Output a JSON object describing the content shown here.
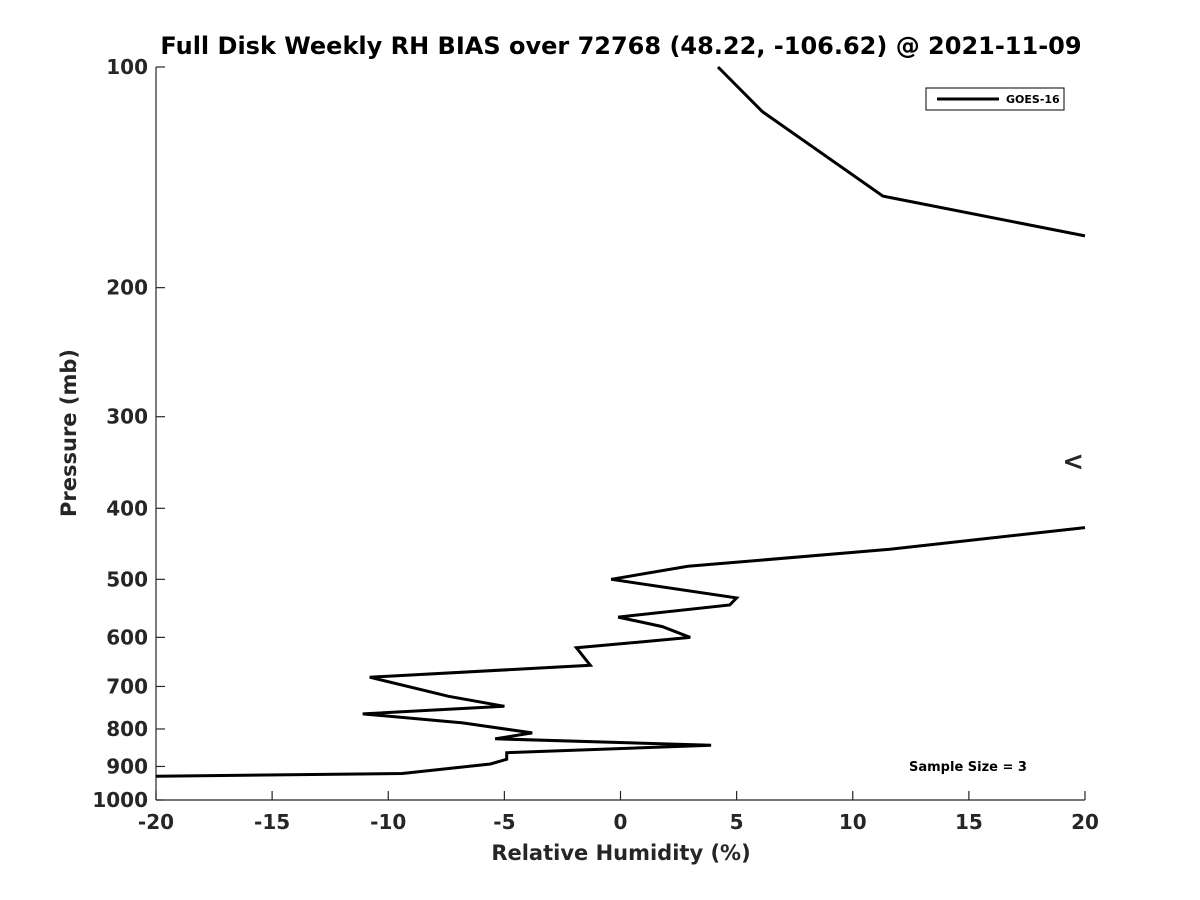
{
  "chart_data": {
    "type": "line",
    "title": "Full Disk Weekly RH BIAS over 72768 (48.22, -106.62) @ 2021-11-09",
    "xlabel": "Relative Humidity (%)",
    "ylabel": "Pressure (mb)",
    "xlim": [
      -20,
      20
    ],
    "ylim": [
      100,
      1000
    ],
    "y_scale": "log",
    "y_reversed": true,
    "xticks": [
      "-20",
      "-15",
      "-10",
      "-5",
      "0",
      "5",
      "10",
      "15",
      "20"
    ],
    "yticks": [
      "100",
      "200",
      "300",
      "400",
      "500",
      "600",
      "700",
      "800",
      "900",
      "1000"
    ],
    "grid": false,
    "legend_position": "top-right",
    "annotation": "Sample Size = 3",
    "out_of_range_marker": "<",
    "out_of_range_marker_pressure": 345,
    "series": [
      {
        "name": "GOES-16",
        "color": "#000000",
        "segments": [
          [
            {
              "x": 4.2,
              "y": 100
            },
            {
              "x": 6.1,
              "y": 115
            },
            {
              "x": 11.3,
              "y": 150
            },
            {
              "x": 20.0,
              "y": 170
            }
          ],
          [
            {
              "x": 20.0,
              "y": 425
            },
            {
              "x": 11.6,
              "y": 455
            },
            {
              "x": 2.9,
              "y": 480
            },
            {
              "x": -0.4,
              "y": 500
            },
            {
              "x": 5.0,
              "y": 530
            },
            {
              "x": 4.7,
              "y": 542
            },
            {
              "x": -0.1,
              "y": 563
            },
            {
              "x": 1.8,
              "y": 580
            },
            {
              "x": 3.0,
              "y": 600
            },
            {
              "x": -1.9,
              "y": 620
            },
            {
              "x": -1.3,
              "y": 655
            },
            {
              "x": -10.8,
              "y": 680
            },
            {
              "x": -7.4,
              "y": 722
            },
            {
              "x": -5.0,
              "y": 745
            },
            {
              "x": -11.1,
              "y": 763
            },
            {
              "x": -6.8,
              "y": 785
            },
            {
              "x": -3.8,
              "y": 810
            },
            {
              "x": -5.4,
              "y": 825
            },
            {
              "x": 3.9,
              "y": 842
            },
            {
              "x": -4.9,
              "y": 862
            },
            {
              "x": -4.9,
              "y": 880
            },
            {
              "x": -5.6,
              "y": 893
            },
            {
              "x": -9.4,
              "y": 920
            },
            {
              "x": -20.0,
              "y": 928
            }
          ]
        ]
      }
    ]
  }
}
